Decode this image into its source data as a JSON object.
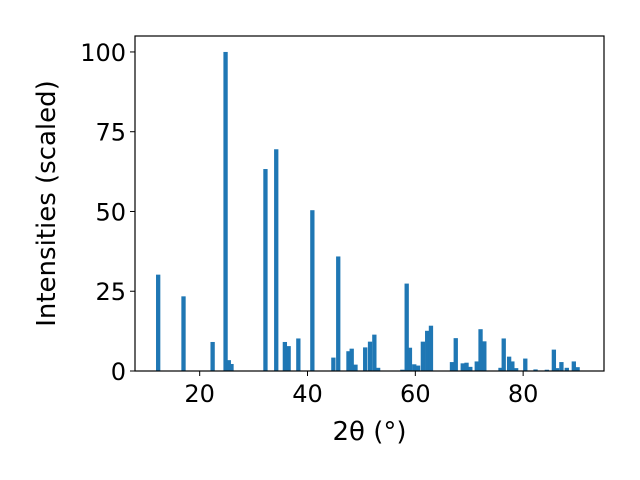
{
  "chart_data": {
    "type": "bar",
    "title": "",
    "xlabel": "2θ (°)",
    "ylabel": "Intensities (scaled)",
    "xlim": [
      8,
      95
    ],
    "ylim": [
      0,
      105
    ],
    "xticks": [
      20,
      40,
      60,
      80
    ],
    "yticks": [
      0,
      25,
      50,
      75,
      100
    ],
    "grid": false,
    "legend": "none",
    "bar_width": 0.8,
    "color": "#1f77b4",
    "x": [
      12.3,
      17.0,
      22.4,
      24.8,
      25.4,
      25.9,
      32.2,
      34.2,
      35.8,
      36.5,
      38.3,
      40.9,
      44.8,
      45.7,
      47.6,
      48.2,
      48.9,
      50.7,
      51.6,
      52.4,
      53.1,
      57.6,
      58.4,
      59.0,
      59.8,
      60.5,
      61.4,
      62.2,
      62.9,
      66.8,
      67.5,
      68.8,
      69.5,
      70.2,
      71.4,
      72.1,
      72.8,
      75.8,
      76.4,
      77.4,
      78.0,
      78.7,
      80.4,
      82.3,
      84.4,
      85.7,
      86.3,
      87.1,
      88.1,
      89.4,
      90.1
    ],
    "values": [
      30.2,
      23.4,
      9.1,
      100,
      3.4,
      2.2,
      63.3,
      69.5,
      9.1,
      7.8,
      10.2,
      50.4,
      4.2,
      35.9,
      6.2,
      7.0,
      2.0,
      7.4,
      9.2,
      11.4,
      1.0,
      0.4,
      27.4,
      7.3,
      2.1,
      1.7,
      9.2,
      12.6,
      14.2,
      2.8,
      10.3,
      2.4,
      2.6,
      1.3,
      3.0,
      13.1,
      9.3,
      1.0,
      10.2,
      4.5,
      3.0,
      0.9,
      3.9,
      0.5,
      0.4,
      6.7,
      0.9,
      2.8,
      1.0,
      3.0,
      1.2
    ]
  }
}
